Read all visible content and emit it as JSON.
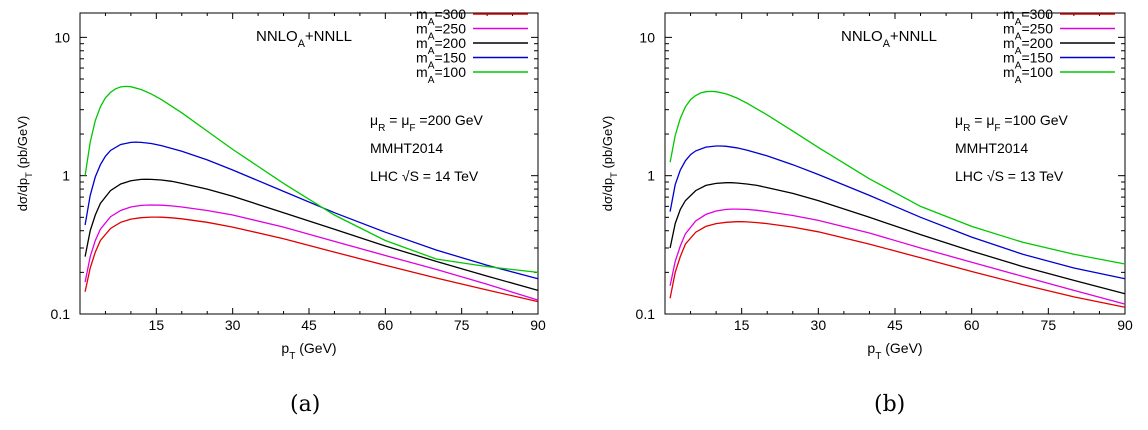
{
  "chart_data": [
    {
      "type": "line",
      "panel_label": "(a)",
      "title": "NNLO_A+NNLL",
      "xlabel": "p_T (GeV)",
      "ylabel": "dσ/dp_T (pb/GeV)",
      "y_scale": "log",
      "xlim": [
        0,
        90
      ],
      "ylim": [
        0.1,
        15
      ],
      "x_ticks": [
        15,
        30,
        45,
        60,
        75,
        90
      ],
      "y_ticks": [
        0.1,
        1,
        10
      ],
      "grid": false,
      "legend_position": "top-right",
      "annotations": [
        "μ_R = μ_F =200 GeV",
        "MMHT2014",
        "LHC √S = 14 TeV"
      ],
      "series": [
        {
          "name": "m_A=300",
          "color": "#e00000",
          "x": [
            1,
            2,
            3,
            4,
            6,
            8,
            10,
            12,
            14,
            15,
            16,
            18,
            20,
            25,
            30,
            40,
            50,
            60,
            70,
            80,
            90
          ],
          "y": [
            0.145,
            0.215,
            0.28,
            0.34,
            0.415,
            0.46,
            0.485,
            0.497,
            0.502,
            0.502,
            0.501,
            0.496,
            0.488,
            0.46,
            0.425,
            0.35,
            0.28,
            0.225,
            0.182,
            0.149,
            0.123
          ]
        },
        {
          "name": "m_A=250",
          "color": "#e000e0",
          "x": [
            1,
            2,
            3,
            4,
            6,
            8,
            10,
            12,
            13,
            14,
            16,
            18,
            20,
            25,
            30,
            40,
            50,
            60,
            70,
            80,
            90
          ],
          "y": [
            0.17,
            0.26,
            0.34,
            0.41,
            0.505,
            0.56,
            0.594,
            0.61,
            0.613,
            0.614,
            0.612,
            0.605,
            0.594,
            0.56,
            0.52,
            0.425,
            0.335,
            0.265,
            0.21,
            0.164,
            0.126
          ]
        },
        {
          "name": "m_A=200",
          "color": "#000000",
          "x": [
            1,
            2,
            3,
            4,
            6,
            8,
            10,
            12,
            13,
            14,
            16,
            18,
            20,
            25,
            30,
            40,
            50,
            60,
            70,
            80,
            90
          ],
          "y": [
            0.26,
            0.4,
            0.52,
            0.63,
            0.78,
            0.87,
            0.92,
            0.94,
            0.942,
            0.94,
            0.93,
            0.91,
            0.88,
            0.8,
            0.71,
            0.54,
            0.41,
            0.31,
            0.24,
            0.188,
            0.148
          ]
        },
        {
          "name": "m_A=150",
          "color": "#0000d0",
          "x": [
            1,
            2,
            3,
            4,
            5,
            6,
            8,
            10,
            11,
            12,
            14,
            16,
            20,
            25,
            30,
            40,
            50,
            60,
            70,
            80,
            90
          ],
          "y": [
            0.44,
            0.72,
            0.98,
            1.2,
            1.38,
            1.52,
            1.68,
            1.74,
            1.75,
            1.74,
            1.71,
            1.65,
            1.5,
            1.3,
            1.1,
            0.77,
            0.54,
            0.39,
            0.29,
            0.225,
            0.18
          ]
        },
        {
          "name": "m_A=100",
          "color": "#00c800",
          "x": [
            1,
            2,
            3,
            4,
            5,
            6,
            7,
            8,
            9,
            10,
            12,
            14,
            16,
            20,
            25,
            30,
            40,
            50,
            60,
            70,
            80,
            90
          ],
          "y": [
            1.0,
            1.75,
            2.5,
            3.15,
            3.65,
            4.0,
            4.25,
            4.38,
            4.42,
            4.4,
            4.2,
            3.9,
            3.55,
            2.85,
            2.1,
            1.55,
            0.88,
            0.52,
            0.34,
            0.25,
            0.22,
            0.2
          ]
        }
      ]
    },
    {
      "type": "line",
      "panel_label": "(b)",
      "title": "NNLO_A+NNLL",
      "xlabel": "p_T (GeV)",
      "ylabel": "dσ/dp_T (pb/GeV)",
      "y_scale": "log",
      "xlim": [
        0,
        90
      ],
      "ylim": [
        0.1,
        15
      ],
      "x_ticks": [
        15,
        30,
        45,
        60,
        75,
        90
      ],
      "y_ticks": [
        0.1,
        1,
        10
      ],
      "grid": false,
      "legend_position": "top-right",
      "annotations": [
        "μ_R = μ_F =100 GeV",
        "MMHT2014",
        "LHC √S = 13 TeV"
      ],
      "series": [
        {
          "name": "m_A=300",
          "color": "#e00000",
          "x": [
            1,
            2,
            3,
            4,
            6,
            8,
            10,
            12,
            14,
            15,
            16,
            18,
            20,
            25,
            30,
            40,
            50,
            60,
            70,
            80,
            90
          ],
          "y": [
            0.13,
            0.2,
            0.26,
            0.32,
            0.39,
            0.43,
            0.45,
            0.46,
            0.465,
            0.465,
            0.463,
            0.458,
            0.45,
            0.425,
            0.393,
            0.32,
            0.255,
            0.203,
            0.163,
            0.133,
            0.112
          ]
        },
        {
          "name": "m_A=250",
          "color": "#e000e0",
          "x": [
            1,
            2,
            3,
            4,
            6,
            8,
            10,
            12,
            13,
            14,
            16,
            18,
            20,
            25,
            30,
            40,
            50,
            60,
            70,
            80,
            90
          ],
          "y": [
            0.16,
            0.24,
            0.31,
            0.38,
            0.47,
            0.525,
            0.555,
            0.57,
            0.573,
            0.573,
            0.57,
            0.562,
            0.55,
            0.515,
            0.475,
            0.385,
            0.3,
            0.237,
            0.187,
            0.148,
            0.118
          ]
        },
        {
          "name": "m_A=200",
          "color": "#000000",
          "x": [
            1,
            2,
            3,
            4,
            6,
            8,
            10,
            12,
            13,
            14,
            16,
            18,
            20,
            25,
            30,
            40,
            50,
            60,
            70,
            80,
            90
          ],
          "y": [
            0.3,
            0.45,
            0.57,
            0.66,
            0.78,
            0.85,
            0.88,
            0.89,
            0.89,
            0.885,
            0.87,
            0.85,
            0.82,
            0.745,
            0.66,
            0.5,
            0.375,
            0.285,
            0.22,
            0.175,
            0.14
          ]
        },
        {
          "name": "m_A=150",
          "color": "#0000d0",
          "x": [
            1,
            2,
            3,
            4,
            5,
            6,
            8,
            10,
            11,
            12,
            14,
            16,
            20,
            25,
            30,
            40,
            50,
            60,
            70,
            80,
            90
          ],
          "y": [
            0.55,
            0.86,
            1.1,
            1.28,
            1.42,
            1.51,
            1.61,
            1.64,
            1.64,
            1.63,
            1.59,
            1.53,
            1.39,
            1.2,
            1.02,
            0.72,
            0.5,
            0.36,
            0.27,
            0.215,
            0.18
          ]
        },
        {
          "name": "m_A=100",
          "color": "#00c800",
          "x": [
            1,
            2,
            3,
            4,
            5,
            6,
            7,
            8,
            9,
            10,
            12,
            14,
            16,
            20,
            25,
            30,
            40,
            50,
            60,
            70,
            80,
            90
          ],
          "y": [
            1.25,
            1.95,
            2.6,
            3.15,
            3.55,
            3.8,
            3.97,
            4.05,
            4.07,
            4.05,
            3.9,
            3.65,
            3.35,
            2.75,
            2.1,
            1.6,
            0.95,
            0.6,
            0.43,
            0.33,
            0.27,
            0.23
          ]
        }
      ]
    }
  ]
}
